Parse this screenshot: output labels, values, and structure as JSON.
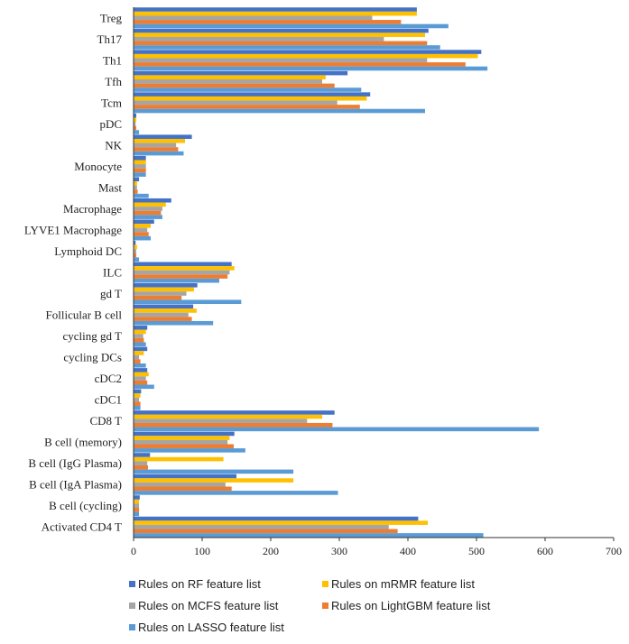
{
  "chart_data": {
    "type": "bar",
    "orientation": "horizontal",
    "grid": false,
    "legend_position": "bottom",
    "xlim": [
      0,
      700
    ],
    "x_ticks": [
      0,
      100,
      200,
      300,
      400,
      500,
      600,
      700
    ],
    "categories": [
      "Treg",
      "Th17",
      "Th1",
      "Tfh",
      "Tcm",
      "pDC",
      "NK",
      "Monocyte",
      "Mast",
      "Macrophage",
      "LYVE1 Macrophage",
      "Lymphoid DC",
      "ILC",
      "gd T",
      "Follicular B cell",
      "cycling gd T",
      "cycling DCs",
      "cDC2",
      "cDC1",
      "CD8 T",
      "B cell (memory)",
      "B cell (IgG Plasma)",
      "B cell (IgA Plasma)",
      "B cell (cycling)",
      "Activated CD4 T"
    ],
    "series": [
      {
        "name": "Rules on RF feature list",
        "color": "#4472c4",
        "values": [
          413,
          430,
          507,
          312,
          345,
          4,
          85,
          18,
          8,
          55,
          30,
          3,
          143,
          93,
          87,
          20,
          20,
          20,
          11,
          293,
          147,
          24,
          150,
          9,
          415
        ]
      },
      {
        "name": "Rules on mRMR feature list",
        "color": "#ffc000",
        "values": [
          413,
          425,
          502,
          280,
          340,
          4,
          75,
          18,
          5,
          47,
          25,
          5,
          147,
          88,
          92,
          18,
          15,
          22,
          10,
          275,
          140,
          131,
          233,
          8,
          429
        ]
      },
      {
        "name": "Rules on  MCFS feature list",
        "color": "#a5a5a5",
        "values": [
          348,
          365,
          428,
          275,
          297,
          3,
          62,
          18,
          5,
          42,
          20,
          4,
          140,
          77,
          80,
          14,
          8,
          18,
          8,
          253,
          137,
          20,
          134,
          8,
          372
        ]
      },
      {
        "name": "Rules on LightGBM feature list",
        "color": "#ed7d31",
        "values": [
          390,
          428,
          484,
          293,
          330,
          4,
          65,
          18,
          6,
          40,
          22,
          4,
          137,
          70,
          85,
          15,
          10,
          20,
          10,
          290,
          146,
          21,
          143,
          8,
          385
        ]
      },
      {
        "name": "Rules on LASSO feature list",
        "color": "#5b9bd5",
        "values": [
          459,
          447,
          516,
          332,
          425,
          8,
          73,
          18,
          22,
          42,
          25,
          8,
          125,
          157,
          116,
          18,
          18,
          30,
          10,
          591,
          163,
          233,
          298,
          8,
          510
        ]
      }
    ]
  }
}
